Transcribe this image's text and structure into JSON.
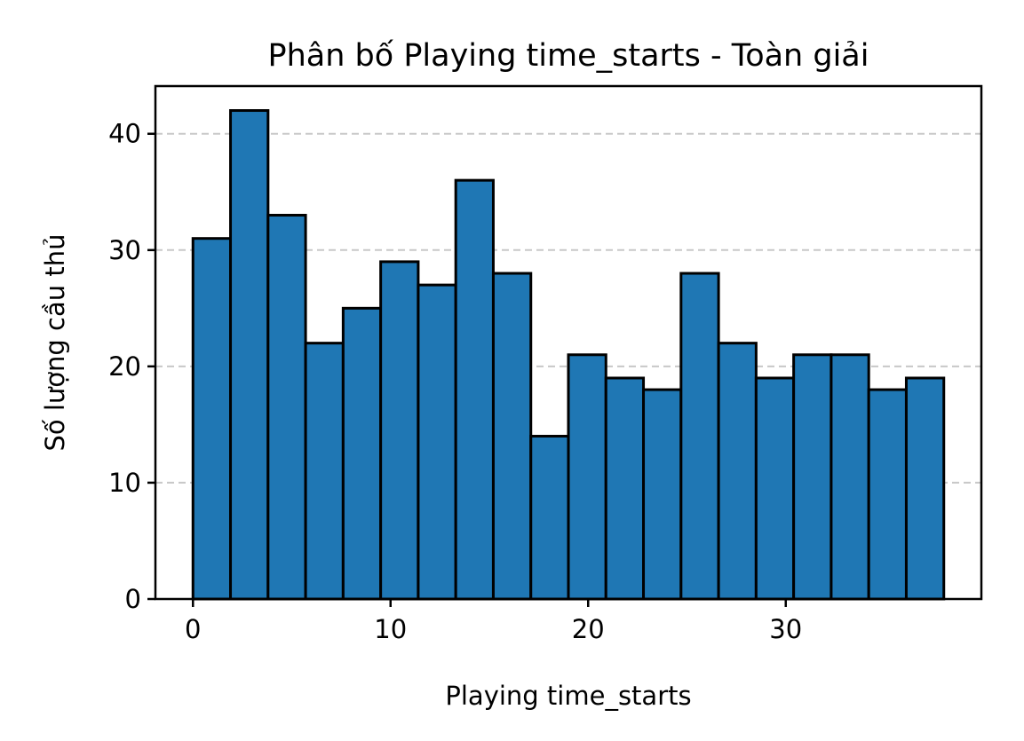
{
  "chart_data": {
    "type": "bar",
    "title": "Phân bố Playing time_starts - Toàn giải",
    "xlabel": "Playing time_starts",
    "ylabel": "Số lượng cầu thủ",
    "bin_edges": [
      0,
      1.9,
      3.8,
      5.7,
      7.6,
      9.5,
      11.4,
      13.3,
      15.2,
      17.1,
      19.0,
      20.9,
      22.8,
      24.7,
      26.6,
      28.5,
      30.4,
      32.3,
      34.2,
      36.1,
      38.0
    ],
    "values": [
      31,
      42,
      33,
      22,
      25,
      29,
      27,
      36,
      28,
      14,
      21,
      19,
      18,
      28,
      22,
      19,
      21,
      21,
      18,
      19
    ],
    "xlim": [
      -1.9,
      39.9
    ],
    "ylim": [
      0,
      44.1
    ],
    "xticks": [
      0,
      10,
      20,
      30
    ],
    "yticks": [
      0,
      10,
      20,
      30,
      40
    ],
    "grid": "y-dashed",
    "bar_color": "#1f77b4",
    "edge_color": "#000000"
  }
}
